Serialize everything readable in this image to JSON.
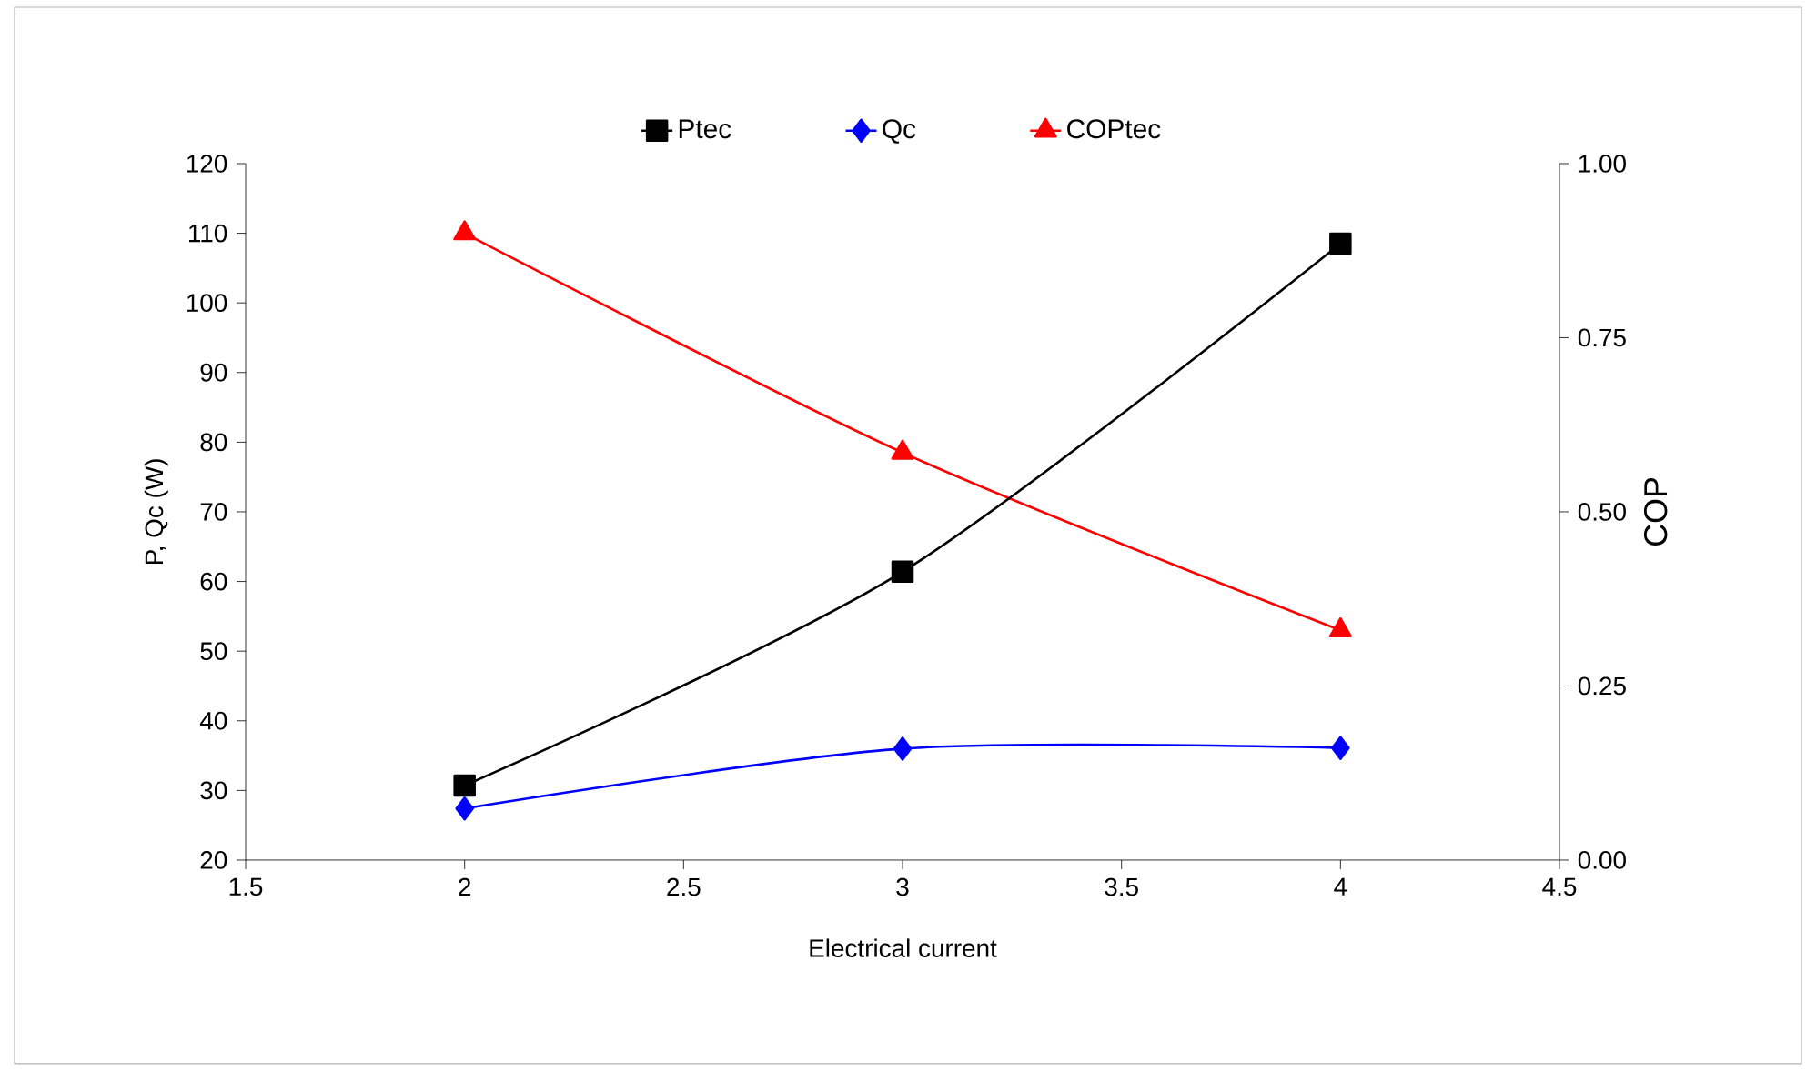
{
  "chart_data": {
    "type": "line",
    "xlabel": "Electrical current",
    "ylabel": "P, Qc (W)",
    "y2label": "COP",
    "xlim": [
      1.5,
      4.5
    ],
    "xticks": [
      1.5,
      2,
      2.5,
      3,
      3.5,
      4,
      4.5
    ],
    "ylim": [
      20,
      120
    ],
    "yticks": [
      20,
      30,
      40,
      50,
      60,
      70,
      80,
      90,
      100,
      110,
      120
    ],
    "y2lim": [
      0,
      1
    ],
    "y2ticks": [
      {
        "value": 0,
        "label": "0.00"
      },
      {
        "value": 0.25,
        "label": "0.25"
      },
      {
        "value": 0.5,
        "label": "0.50"
      },
      {
        "value": 0.75,
        "label": "0.75"
      },
      {
        "value": 1,
        "label": "1.00"
      }
    ],
    "x": [
      2,
      3,
      4
    ],
    "series": [
      {
        "name": "Ptec",
        "color": "#000000",
        "marker": "square",
        "values": [
          30.7,
          61.4,
          108.5
        ]
      },
      {
        "name": "Qc",
        "color": "#0000ff",
        "marker": "diamond",
        "values": [
          27.4,
          36.0,
          36.1
        ]
      },
      {
        "name": "COPtec",
        "color": "#ff0000",
        "marker": "triangle",
        "axis": "y2",
        "values": [
          0.9,
          0.585,
          0.33
        ]
      }
    ],
    "legend": "top",
    "grid": false,
    "line_style": "solid"
  }
}
